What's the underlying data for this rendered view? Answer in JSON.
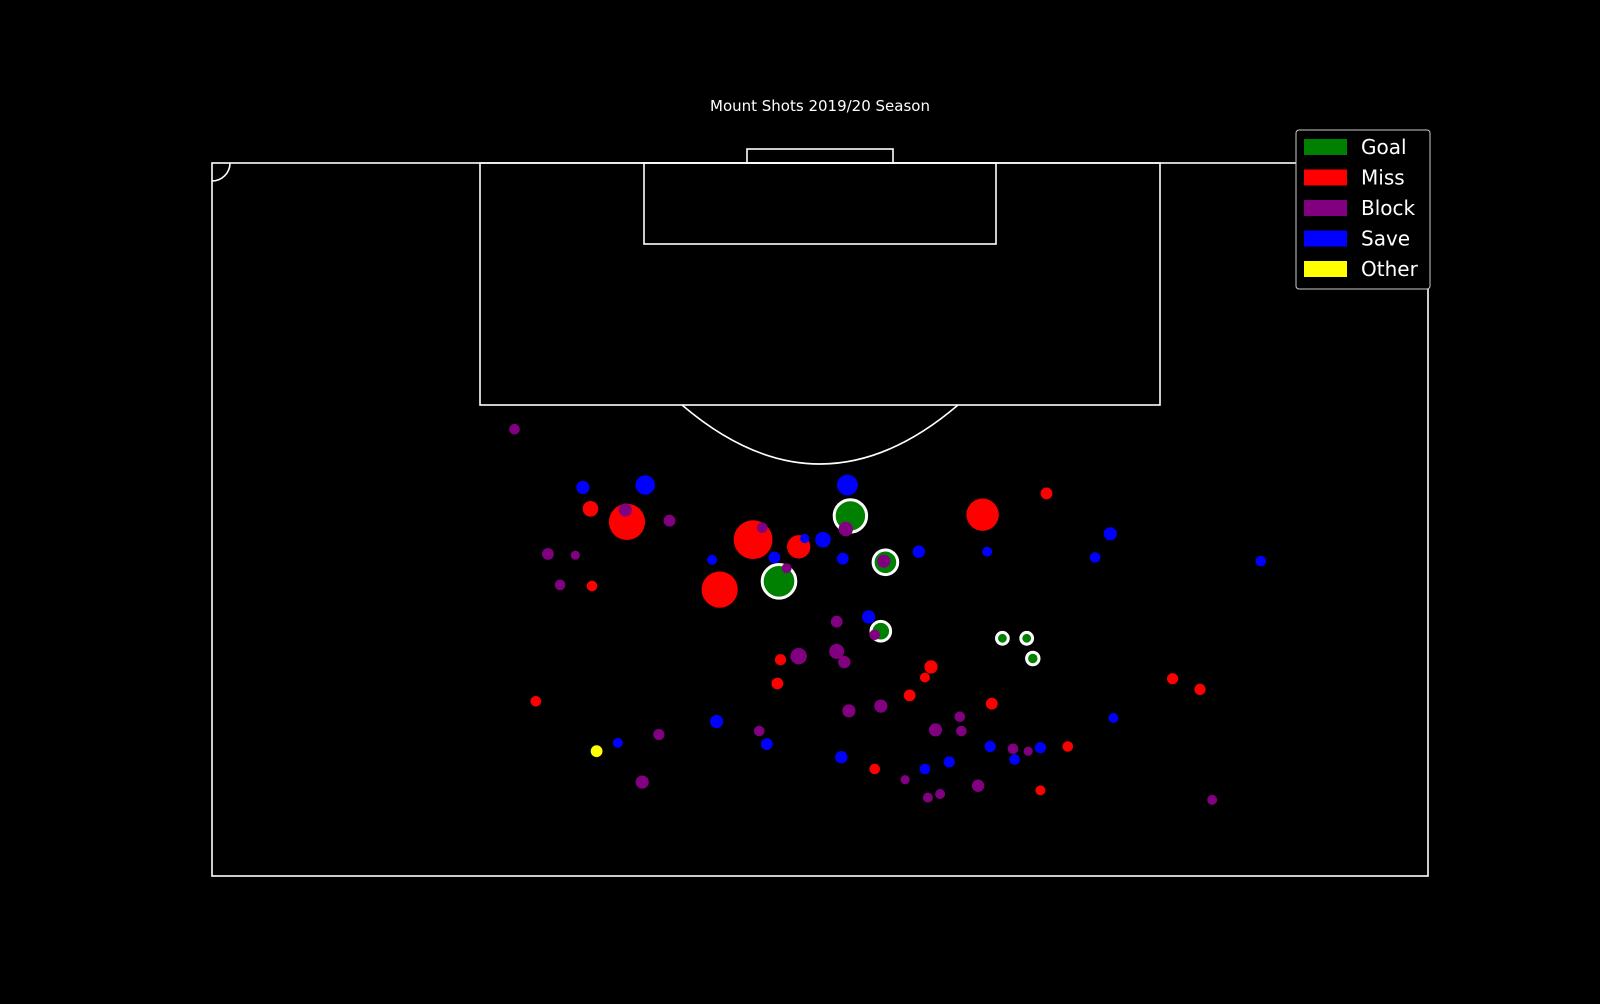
{
  "chart_data": {
    "type": "scatter",
    "title": "Mount Shots 2019/20 Season",
    "xlabel": "",
    "ylabel": "",
    "colors": {
      "Goal": "#008000",
      "Miss": "#ff0000",
      "Block": "#800080",
      "Save": "#0000ff",
      "Other": "#ffff00",
      "background": "#000000",
      "lines": "#ffffff"
    },
    "legend": {
      "placement": "top-right",
      "entries": [
        "Goal",
        "Miss",
        "Block",
        "Save",
        "Other"
      ]
    },
    "series": [
      {
        "name": "Goal",
        "points": [
          [
            86.4,
            44.3,
            0.26
          ],
          [
            80.6,
            44.0,
            0.18
          ],
          [
            84.8,
            37.3,
            0.4
          ],
          [
            78.3,
            54.0,
            0.07
          ],
          [
            80.0,
            52.0,
            0.06
          ],
          [
            80.0,
            53.6,
            0.06
          ],
          [
            90.3,
            42.0,
            0.38
          ]
        ]
      },
      {
        "name": "Miss",
        "points": [
          [
            84.1,
            33.4,
            0.44
          ],
          [
            88.3,
            35.6,
            0.48
          ],
          [
            89.8,
            27.3,
            0.44
          ],
          [
            90.4,
            50.7,
            0.38
          ],
          [
            92.2,
            54.9,
            0.06
          ],
          [
            77.6,
            47.3,
            0.08
          ],
          [
            78.2,
            37.4,
            0.05
          ],
          [
            76.2,
            37.2,
            0.06
          ],
          [
            74.5,
            51.3,
            0.06
          ],
          [
            75.7,
            65.0,
            0.05
          ],
          [
            76.6,
            63.2,
            0.05
          ],
          [
            67.2,
            54.5,
            0.03
          ],
          [
            75.2,
            45.9,
            0.06
          ],
          [
            76.7,
            46.9,
            0.03
          ],
          [
            69.0,
            43.6,
            0.04
          ],
          [
            70.9,
            56.3,
            0.04
          ],
          [
            74.7,
            21.3,
            0.04
          ],
          [
            90.9,
            24.9,
            0.12
          ],
          [
            87.7,
            38.6,
            0.24
          ],
          [
            84.4,
            25.0,
            0.04
          ]
        ]
      },
      {
        "name": "Block",
        "points": [
          [
            97.6,
            19.9,
            0.04
          ],
          [
            89.2,
            41.7,
            0.1
          ],
          [
            86.5,
            44.2,
            0.08
          ],
          [
            89.3,
            36.2,
            0.04
          ],
          [
            87.1,
            22.1,
            0.06
          ],
          [
            87.0,
            23.9,
            0.02
          ],
          [
            84.5,
            22.9,
            0.04
          ],
          [
            78.5,
            38.6,
            0.13
          ],
          [
            78.9,
            41.1,
            0.11
          ],
          [
            85.9,
            37.8,
            0.03
          ],
          [
            74.3,
            44.0,
            0.08
          ],
          [
            80.3,
            43.6,
            0.04
          ],
          [
            81.4,
            41.1,
            0.06
          ],
          [
            78.0,
            41.6,
            0.07
          ],
          [
            73.9,
            41.9,
            0.08
          ],
          [
            73.4,
            49.2,
            0.04
          ],
          [
            72.3,
            47.6,
            0.08
          ],
          [
            72.2,
            49.3,
            0.04
          ],
          [
            70.5,
            53.7,
            0.02
          ],
          [
            70.7,
            52.7,
            0.04
          ],
          [
            68.1,
            45.6,
            0.02
          ],
          [
            66.9,
            47.9,
            0.03
          ],
          [
            66.6,
            47.1,
            0.03
          ],
          [
            67.6,
            50.4,
            0.07
          ],
          [
            66.4,
            65.8,
            0.03
          ],
          [
            72.2,
            36.0,
            0.04
          ],
          [
            71.9,
            29.4,
            0.05
          ],
          [
            67.9,
            28.3,
            0.08
          ],
          [
            89.9,
            30.1,
            0.06
          ],
          [
            90.8,
            27.2,
            0.08
          ]
        ]
      },
      {
        "name": "Save",
        "points": [
          [
            92.9,
            41.8,
            0.2
          ],
          [
            92.9,
            28.5,
            0.18
          ],
          [
            92.7,
            24.4,
            0.08
          ],
          [
            88.3,
            40.2,
            0.12
          ],
          [
            88.8,
            59.1,
            0.08
          ],
          [
            86.8,
            37.0,
            0.06
          ],
          [
            87.3,
            46.5,
            0.07
          ],
          [
            86.7,
            41.5,
            0.06
          ],
          [
            87.3,
            51.0,
            0.03
          ],
          [
            73.0,
            33.2,
            0.08
          ],
          [
            73.3,
            59.3,
            0.03
          ],
          [
            70.9,
            51.2,
            0.05
          ],
          [
            69.0,
            46.9,
            0.04
          ],
          [
            69.6,
            48.5,
            0.05
          ],
          [
            69.8,
            52.8,
            0.04
          ],
          [
            71.1,
            36.5,
            0.06
          ],
          [
            70.0,
            41.4,
            0.07
          ],
          [
            70.8,
            54.5,
            0.05
          ],
          [
            86.5,
            69.0,
            0.04
          ],
          [
            81.8,
            43.2,
            0.08
          ],
          [
            86.8,
            58.1,
            0.04
          ],
          [
            86.6,
            32.9,
            0.03
          ],
          [
            71.2,
            26.7,
            0.03
          ],
          [
            88.4,
            39.0,
            0.02
          ]
        ]
      },
      {
        "name": "Other",
        "points": [
          [
            70.5,
            25.3,
            0.06
          ]
        ]
      }
    ]
  }
}
